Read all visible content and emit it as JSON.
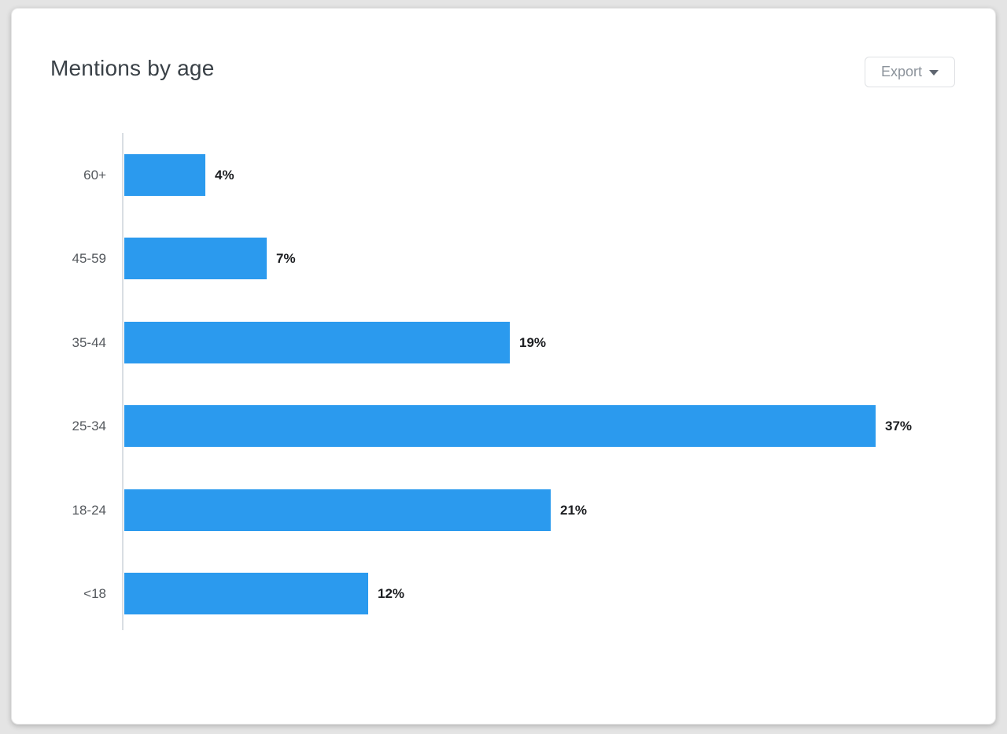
{
  "header": {
    "title": "Mentions by age"
  },
  "export": {
    "label": "Export"
  },
  "icons": {
    "export_caret": "caret-down"
  },
  "chart_data": {
    "type": "bar",
    "orientation": "horizontal",
    "title": "Mentions by age",
    "categories": [
      "60+",
      "45-59",
      "35-44",
      "25-34",
      "18-24",
      "<18"
    ],
    "values": [
      4,
      7,
      19,
      37,
      21,
      12
    ],
    "value_labels": [
      "4%",
      "7%",
      "19%",
      "37%",
      "21%",
      "12%"
    ],
    "xlabel": "",
    "ylabel": "",
    "xlim": [
      0,
      40
    ],
    "grid": false,
    "legend": false,
    "bar_color": "#2b9aee",
    "axis_color": "#d9dee3"
  },
  "colors": {
    "card_background": "#ffffff",
    "page_background": "#e4e4e4",
    "title_text": "#3a4147",
    "category_text": "#54585d",
    "value_text": "#1c1e21",
    "export_text": "#8c939b"
  }
}
